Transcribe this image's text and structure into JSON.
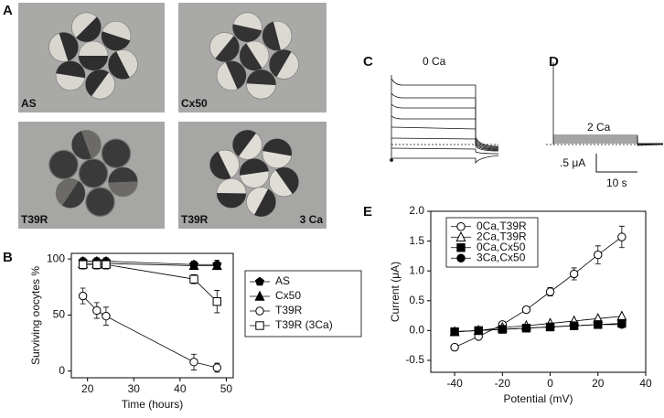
{
  "panels": {
    "a": {
      "label": "A",
      "photos": [
        {
          "label": "AS"
        },
        {
          "label": "Cx50"
        },
        {
          "label": "T39R"
        },
        {
          "label": "T39R",
          "note": "3 Ca"
        }
      ]
    },
    "b": {
      "label": "B"
    },
    "c": {
      "label": "C",
      "condition": "0 Ca"
    },
    "d": {
      "label": "D",
      "condition": "2 Ca",
      "scale_current": ".5 μA",
      "scale_time": "10 s"
    },
    "e": {
      "label": "E"
    }
  },
  "chart_data": [
    {
      "type": "line",
      "xlabel": "Time (hours)",
      "ylabel": "Surviving oocytes %",
      "x": [
        19,
        22,
        24,
        43,
        48
      ],
      "xlim": [
        16.5,
        51.5
      ],
      "xticks": [
        20,
        30,
        40,
        50
      ],
      "ylim": [
        -6,
        105
      ],
      "yticks": [
        0,
        50,
        100
      ],
      "legend": "right",
      "series": [
        {
          "name": "AS",
          "color": "#000000",
          "marker": "pentagon",
          "filled": true,
          "values": [
            98,
            98,
            98,
            95,
            95
          ],
          "errors": [
            3,
            3,
            3,
            3,
            4
          ]
        },
        {
          "name": "Cx50",
          "color": "#000000",
          "marker": "triangle",
          "filled": true,
          "values": [
            96,
            96,
            96,
            94,
            94
          ],
          "errors": [
            2,
            2,
            2,
            2,
            2
          ]
        },
        {
          "name": "T39R",
          "color": "#000000",
          "marker": "circle",
          "filled": false,
          "values": [
            67,
            54,
            49,
            8,
            3
          ],
          "errors": [
            7,
            7,
            8,
            7,
            4
          ]
        },
        {
          "name": "T39R (3Ca)",
          "color": "#000000",
          "marker": "square",
          "filled": false,
          "values": [
            95,
            95,
            95,
            82,
            62
          ],
          "errors": [
            4,
            4,
            4,
            4,
            10
          ]
        }
      ]
    },
    {
      "type": "line",
      "xlabel": "Potential (mV)",
      "ylabel": "Current (μA)",
      "x": [
        -40,
        -30,
        -20,
        -10,
        0,
        10,
        20,
        30
      ],
      "xlim": [
        -50,
        40
      ],
      "xticks": [
        -40,
        -20,
        0,
        20,
        40
      ],
      "ylim": [
        -0.7,
        2.0
      ],
      "yticks": [
        -0.5,
        {
          "value": 0,
          "label": "0.0"
        },
        0.5,
        {
          "value": 1,
          "label": "1.0"
        },
        1.5,
        {
          "value": 2,
          "label": "2.0"
        }
      ],
      "legend": "upper left",
      "series": [
        {
          "name": "0Ca,T39R",
          "color": "#000000",
          "marker": "circle",
          "filled": false,
          "values": [
            -0.28,
            -0.1,
            0.1,
            0.35,
            0.65,
            0.95,
            1.27,
            1.57
          ],
          "errors": [
            0.05,
            0.04,
            0.04,
            0.05,
            0.07,
            0.1,
            0.15,
            0.18
          ]
        },
        {
          "name": "2Ca,T39R",
          "color": "#000000",
          "marker": "triangle",
          "filled": false,
          "values": [
            -0.02,
            0,
            0.05,
            0.08,
            0.12,
            0.16,
            0.2,
            0.24
          ]
        },
        {
          "name": "0Ca,Cx50",
          "color": "#000000",
          "marker": "square",
          "filled": true,
          "values": [
            -0.02,
            0,
            0.02,
            0.04,
            0.06,
            0.08,
            0.1,
            0.12
          ]
        },
        {
          "name": "3Ca,Cx50",
          "color": "#000000",
          "marker": "circle",
          "filled": true,
          "values": [
            -0.02,
            0,
            0.02,
            0.04,
            0.06,
            0.08,
            0.1,
            0.1
          ]
        }
      ]
    }
  ]
}
